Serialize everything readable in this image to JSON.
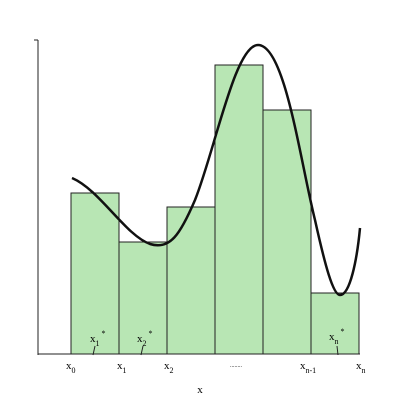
{
  "axis_label": "x",
  "partition_labels": [
    {
      "base": "x",
      "sub": "0"
    },
    {
      "base": "x",
      "sub": "1"
    },
    {
      "base": "x",
      "sub": "2"
    },
    {
      "base": "x",
      "sub": "n-1"
    },
    {
      "base": "x",
      "sub": "n"
    }
  ],
  "ellipsis": "........",
  "sample_labels": [
    {
      "base": "x",
      "sub": "1",
      "sup": "*"
    },
    {
      "base": "x",
      "sub": "2",
      "sup": "*"
    },
    {
      "base": "x",
      "sub": "n",
      "sup": "*"
    }
  ]
}
